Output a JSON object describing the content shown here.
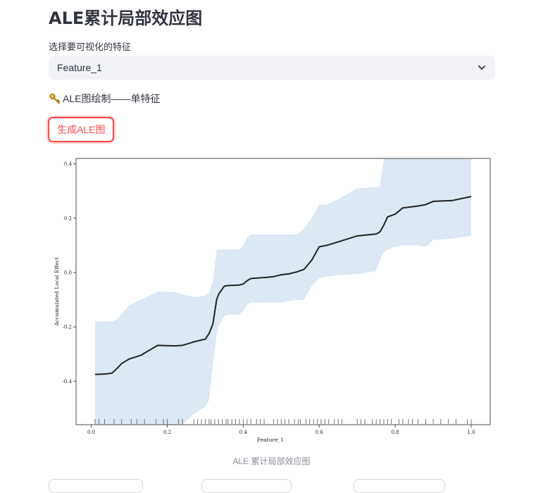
{
  "page": {
    "title": "ALE累计局部效应图",
    "select_label": "选择要可视化的特征",
    "selected_feature": "Feature_1",
    "section_caption": "ALE图绘制——单特征",
    "section_icon": "key-icon",
    "generate_button": "生成ALE图",
    "figure_caption": "ALE 累计局部效应图"
  },
  "chart_data": {
    "type": "line",
    "title": "",
    "xlabel": "Feature_1",
    "ylabel": "Accumulated Local Effect",
    "xlim": [
      -0.04,
      1.05
    ],
    "ylim": [
      -0.56,
      0.42
    ],
    "x_ticks": [
      0.0,
      0.2,
      0.4,
      0.6,
      0.8,
      1.0
    ],
    "x_tick_labels": [
      "0.0",
      "0.2",
      "0.4",
      "0.6",
      "0.8",
      "1.0"
    ],
    "y_ticks": [
      -0.4,
      -0.2,
      0.0,
      0.2,
      0.4
    ],
    "y_tick_labels": [
      "-0.4",
      "-0.2",
      "0.0",
      "0.2",
      "0.4"
    ],
    "line_color": "#222222",
    "band_color": "#dce8f3",
    "series": [
      {
        "x": [
          0.01,
          0.04,
          0.055,
          0.07,
          0.08,
          0.1,
          0.13,
          0.16,
          0.175,
          0.22,
          0.24,
          0.27,
          0.3,
          0.31,
          0.32,
          0.33,
          0.335,
          0.35,
          0.36,
          0.39,
          0.4,
          0.41,
          0.42,
          0.46,
          0.48,
          0.5,
          0.52,
          0.54,
          0.56,
          0.58,
          0.6,
          0.62,
          0.65,
          0.7,
          0.75,
          0.76,
          0.77,
          0.78,
          0.8,
          0.82,
          0.86,
          0.88,
          0.9,
          0.95,
          1.0
        ],
        "y": [
          -0.375,
          -0.373,
          -0.37,
          -0.35,
          -0.335,
          -0.318,
          -0.305,
          -0.28,
          -0.268,
          -0.27,
          -0.268,
          -0.255,
          -0.245,
          -0.225,
          -0.19,
          -0.1,
          -0.08,
          -0.05,
          -0.048,
          -0.046,
          -0.042,
          -0.03,
          -0.022,
          -0.018,
          -0.015,
          -0.008,
          -0.005,
          0.002,
          0.012,
          0.045,
          0.095,
          0.1,
          0.113,
          0.135,
          0.142,
          0.15,
          0.175,
          0.205,
          0.215,
          0.238,
          0.245,
          0.25,
          0.262,
          0.265,
          0.28
        ],
        "lower": [
          -0.56,
          -0.56,
          -0.56,
          -0.56,
          -0.56,
          -0.56,
          -0.56,
          -0.56,
          -0.56,
          -0.56,
          -0.56,
          -0.52,
          -0.495,
          -0.47,
          -0.34,
          -0.23,
          -0.2,
          -0.16,
          -0.155,
          -0.155,
          -0.14,
          -0.12,
          -0.11,
          -0.11,
          -0.11,
          -0.11,
          -0.105,
          -0.1,
          -0.1,
          -0.05,
          -0.02,
          -0.015,
          -0.01,
          -0.005,
          0.005,
          0.05,
          0.075,
          0.085,
          0.095,
          0.1,
          0.1,
          0.095,
          0.12,
          0.125,
          0.135
        ],
        "upper": [
          -0.18,
          -0.18,
          -0.18,
          -0.17,
          -0.15,
          -0.12,
          -0.1,
          -0.08,
          -0.07,
          -0.072,
          -0.08,
          -0.09,
          -0.085,
          -0.075,
          -0.035,
          0.08,
          0.085,
          0.085,
          0.085,
          0.085,
          0.1,
          0.13,
          0.14,
          0.14,
          0.14,
          0.14,
          0.14,
          0.14,
          0.16,
          0.2,
          0.25,
          0.25,
          0.27,
          0.31,
          0.315,
          0.32,
          0.42,
          0.42,
          0.42,
          0.42,
          0.42,
          0.42,
          0.42,
          0.42,
          0.42
        ]
      }
    ],
    "rug": [
      0.01,
      0.02,
      0.035,
      0.06,
      0.08,
      0.105,
      0.12,
      0.14,
      0.17,
      0.19,
      0.2,
      0.23,
      0.24,
      0.27,
      0.28,
      0.29,
      0.3,
      0.31,
      0.315,
      0.325,
      0.335,
      0.345,
      0.355,
      0.36,
      0.37,
      0.38,
      0.39,
      0.4,
      0.41,
      0.42,
      0.435,
      0.445,
      0.455,
      0.48,
      0.49,
      0.5,
      0.51,
      0.52,
      0.535,
      0.545,
      0.55,
      0.565,
      0.575,
      0.585,
      0.595,
      0.605,
      0.615,
      0.625,
      0.64,
      0.65,
      0.66,
      0.7,
      0.71,
      0.72,
      0.74,
      0.75,
      0.76,
      0.77,
      0.78,
      0.79,
      0.81,
      0.82,
      0.835,
      0.845,
      0.86,
      0.88,
      0.9,
      0.92,
      0.94,
      0.96,
      0.99,
      1.0
    ]
  }
}
